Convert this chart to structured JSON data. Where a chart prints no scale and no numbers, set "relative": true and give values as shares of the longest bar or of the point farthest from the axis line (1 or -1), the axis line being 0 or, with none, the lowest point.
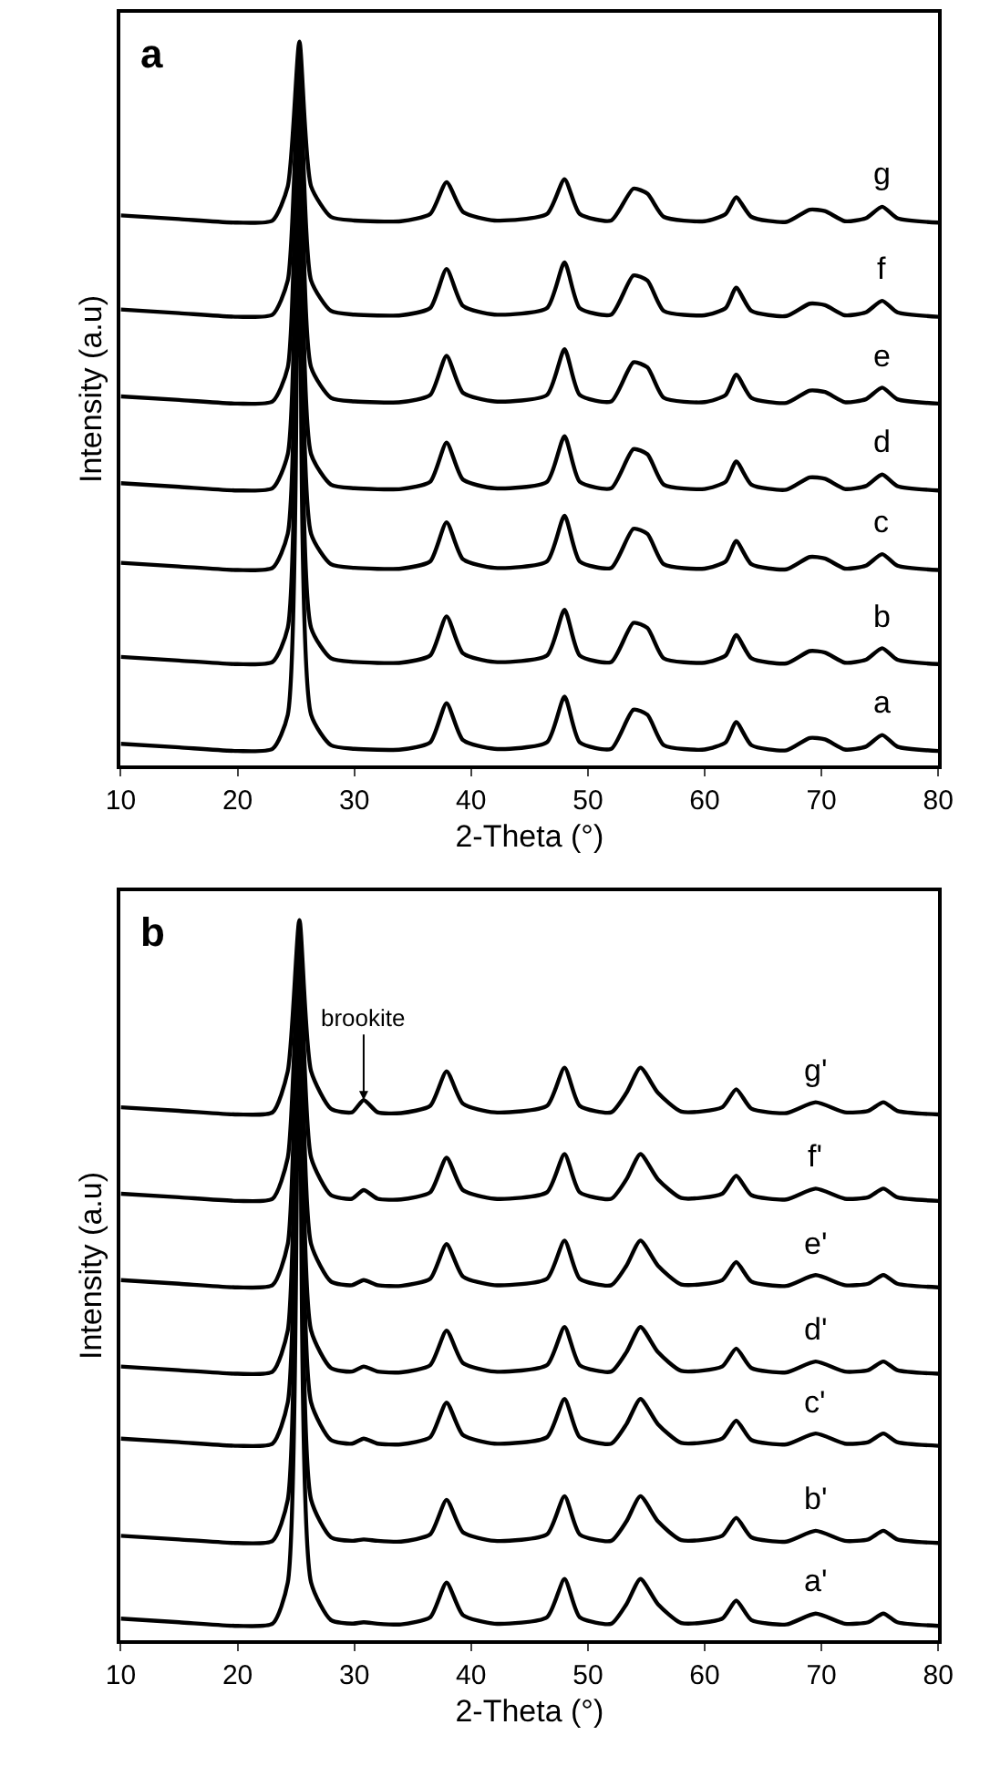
{
  "chart_data": [
    {
      "type": "line",
      "title": "a",
      "xlabel": "2-Theta (°)",
      "ylabel": "Intensity (a.u)",
      "relative": true,
      "tick_labels": "x",
      "legend": false,
      "marker": "none",
      "line_style": "solid",
      "xlim": [
        10,
        80
      ],
      "xticks": [
        10,
        20,
        30,
        40,
        50,
        60,
        70,
        80
      ],
      "x": [
        10,
        15,
        20,
        23,
        24.3,
        25.3,
        26.3,
        28,
        30,
        34,
        36.5,
        37.9,
        39.3,
        42,
        46.5,
        48,
        49.3,
        52,
        53.9,
        55.1,
        56.5,
        60,
        61.8,
        62.7,
        64,
        67,
        69,
        70.3,
        72,
        73.8,
        75.2,
        76.5,
        80
      ],
      "series": [
        {
          "name": "a",
          "color": "#000000",
          "values": [
            0.03,
            0.025,
            0.02,
            0.023,
            0.07,
            0.97,
            0.07,
            0.028,
            0.023,
            0.022,
            0.032,
            0.086,
            0.035,
            0.023,
            0.032,
            0.095,
            0.032,
            0.023,
            0.077,
            0.07,
            0.028,
            0.022,
            0.032,
            0.06,
            0.028,
            0.021,
            0.038,
            0.036,
            0.022,
            0.026,
            0.042,
            0.026,
            0.02
          ]
        },
        {
          "name": "b",
          "color": "#000000",
          "values": [
            0.15,
            0.145,
            0.14,
            0.143,
            0.19,
            0.97,
            0.19,
            0.148,
            0.143,
            0.142,
            0.152,
            0.206,
            0.155,
            0.143,
            0.152,
            0.215,
            0.152,
            0.143,
            0.197,
            0.19,
            0.148,
            0.142,
            0.152,
            0.18,
            0.148,
            0.141,
            0.158,
            0.156,
            0.142,
            0.146,
            0.162,
            0.146,
            0.14
          ]
        },
        {
          "name": "c",
          "color": "#000000",
          "values": [
            0.28,
            0.275,
            0.27,
            0.273,
            0.32,
            0.98,
            0.32,
            0.278,
            0.273,
            0.272,
            0.282,
            0.336,
            0.285,
            0.273,
            0.282,
            0.345,
            0.282,
            0.273,
            0.327,
            0.32,
            0.278,
            0.272,
            0.282,
            0.31,
            0.278,
            0.271,
            0.288,
            0.286,
            0.272,
            0.276,
            0.292,
            0.276,
            0.27
          ]
        },
        {
          "name": "d",
          "color": "#000000",
          "values": [
            0.39,
            0.385,
            0.38,
            0.383,
            0.43,
            0.98,
            0.43,
            0.388,
            0.383,
            0.382,
            0.392,
            0.446,
            0.395,
            0.383,
            0.392,
            0.455,
            0.392,
            0.383,
            0.437,
            0.43,
            0.388,
            0.382,
            0.392,
            0.42,
            0.388,
            0.381,
            0.398,
            0.396,
            0.382,
            0.386,
            0.402,
            0.386,
            0.38
          ]
        },
        {
          "name": "e",
          "color": "#000000",
          "values": [
            0.51,
            0.505,
            0.5,
            0.503,
            0.55,
            0.99,
            0.55,
            0.508,
            0.503,
            0.502,
            0.512,
            0.566,
            0.515,
            0.503,
            0.512,
            0.575,
            0.512,
            0.503,
            0.557,
            0.55,
            0.508,
            0.502,
            0.512,
            0.54,
            0.508,
            0.501,
            0.518,
            0.516,
            0.502,
            0.506,
            0.522,
            0.506,
            0.5
          ]
        },
        {
          "name": "f",
          "color": "#000000",
          "values": [
            0.63,
            0.625,
            0.62,
            0.623,
            0.67,
            0.99,
            0.67,
            0.628,
            0.623,
            0.622,
            0.632,
            0.686,
            0.635,
            0.623,
            0.632,
            0.695,
            0.632,
            0.623,
            0.677,
            0.67,
            0.628,
            0.622,
            0.632,
            0.66,
            0.628,
            0.621,
            0.638,
            0.636,
            0.622,
            0.626,
            0.642,
            0.626,
            0.62
          ]
        },
        {
          "name": "g",
          "color": "#000000",
          "values": [
            0.76,
            0.755,
            0.75,
            0.753,
            0.8,
            1,
            0.8,
            0.758,
            0.753,
            0.752,
            0.762,
            0.806,
            0.765,
            0.753,
            0.762,
            0.81,
            0.762,
            0.753,
            0.797,
            0.79,
            0.758,
            0.752,
            0.762,
            0.785,
            0.758,
            0.751,
            0.768,
            0.766,
            0.752,
            0.756,
            0.772,
            0.756,
            0.75
          ]
        }
      ]
    },
    {
      "type": "line",
      "title": "b",
      "xlabel": "2-Theta (°)",
      "ylabel": "Intensity (a.u)",
      "relative": true,
      "tick_labels": "x",
      "legend": false,
      "marker": "none",
      "line_style": "solid",
      "xlim": [
        10,
        80
      ],
      "xticks": [
        10,
        20,
        30,
        40,
        50,
        60,
        70,
        80
      ],
      "annotations": [
        {
          "text": "brookite",
          "x": 30.8,
          "y": 0.75
        }
      ],
      "x": [
        10,
        15,
        20,
        23,
        24.3,
        25.3,
        26.3,
        28,
        29.8,
        30.8,
        32,
        34,
        36.5,
        37.9,
        39.3,
        42,
        46.5,
        48,
        49.3,
        52,
        53.3,
        54.5,
        56,
        58,
        61.5,
        62.7,
        64,
        67,
        69.5,
        72,
        74,
        75.3,
        76.5,
        80
      ],
      "series": [
        {
          "name": "a'",
          "color": "#000000",
          "values": [
            0.03,
            0.025,
            0.02,
            0.023,
            0.08,
            0.97,
            0.08,
            0.028,
            0.023,
            0.025,
            0.023,
            0.022,
            0.032,
            0.08,
            0.035,
            0.023,
            0.032,
            0.085,
            0.032,
            0.023,
            0.05,
            0.085,
            0.05,
            0.024,
            0.03,
            0.055,
            0.028,
            0.022,
            0.037,
            0.023,
            0.025,
            0.037,
            0.025,
            0.02
          ]
        },
        {
          "name": "b'",
          "color": "#000000",
          "values": [
            0.145,
            0.14,
            0.135,
            0.138,
            0.195,
            0.95,
            0.195,
            0.143,
            0.138,
            0.14,
            0.138,
            0.137,
            0.147,
            0.195,
            0.15,
            0.138,
            0.147,
            0.2,
            0.147,
            0.138,
            0.165,
            0.2,
            0.165,
            0.139,
            0.145,
            0.17,
            0.143,
            0.137,
            0.152,
            0.138,
            0.14,
            0.152,
            0.14,
            0.135
          ]
        },
        {
          "name": "c'",
          "color": "#000000",
          "values": [
            0.28,
            0.275,
            0.27,
            0.273,
            0.33,
            0.96,
            0.33,
            0.278,
            0.273,
            0.28,
            0.273,
            0.272,
            0.282,
            0.33,
            0.285,
            0.273,
            0.282,
            0.335,
            0.282,
            0.273,
            0.3,
            0.335,
            0.3,
            0.274,
            0.28,
            0.305,
            0.278,
            0.272,
            0.287,
            0.273,
            0.275,
            0.287,
            0.275,
            0.27
          ]
        },
        {
          "name": "d'",
          "color": "#000000",
          "values": [
            0.38,
            0.375,
            0.37,
            0.373,
            0.43,
            0.97,
            0.43,
            0.378,
            0.373,
            0.38,
            0.373,
            0.372,
            0.382,
            0.43,
            0.385,
            0.373,
            0.382,
            0.435,
            0.382,
            0.373,
            0.4,
            0.435,
            0.4,
            0.374,
            0.38,
            0.405,
            0.378,
            0.372,
            0.387,
            0.373,
            0.375,
            0.387,
            0.375,
            0.37
          ]
        },
        {
          "name": "e'",
          "color": "#000000",
          "values": [
            0.5,
            0.495,
            0.49,
            0.493,
            0.55,
            0.97,
            0.55,
            0.498,
            0.493,
            0.5,
            0.493,
            0.492,
            0.502,
            0.55,
            0.505,
            0.493,
            0.502,
            0.555,
            0.502,
            0.493,
            0.52,
            0.555,
            0.52,
            0.494,
            0.5,
            0.525,
            0.498,
            0.492,
            0.507,
            0.493,
            0.495,
            0.507,
            0.495,
            0.49
          ]
        },
        {
          "name": "f'",
          "color": "#000000",
          "values": [
            0.62,
            0.615,
            0.61,
            0.613,
            0.67,
            0.98,
            0.67,
            0.618,
            0.613,
            0.625,
            0.613,
            0.612,
            0.622,
            0.67,
            0.625,
            0.613,
            0.622,
            0.675,
            0.622,
            0.613,
            0.64,
            0.675,
            0.64,
            0.614,
            0.62,
            0.645,
            0.618,
            0.612,
            0.627,
            0.613,
            0.615,
            0.627,
            0.615,
            0.61
          ]
        },
        {
          "name": "g'",
          "color": "#000000",
          "values": [
            0.74,
            0.735,
            0.73,
            0.733,
            0.79,
            1,
            0.79,
            0.738,
            0.733,
            0.75,
            0.733,
            0.732,
            0.742,
            0.79,
            0.745,
            0.733,
            0.742,
            0.795,
            0.742,
            0.733,
            0.76,
            0.795,
            0.76,
            0.734,
            0.74,
            0.765,
            0.738,
            0.732,
            0.747,
            0.733,
            0.735,
            0.747,
            0.735,
            0.73
          ]
        }
      ]
    }
  ]
}
